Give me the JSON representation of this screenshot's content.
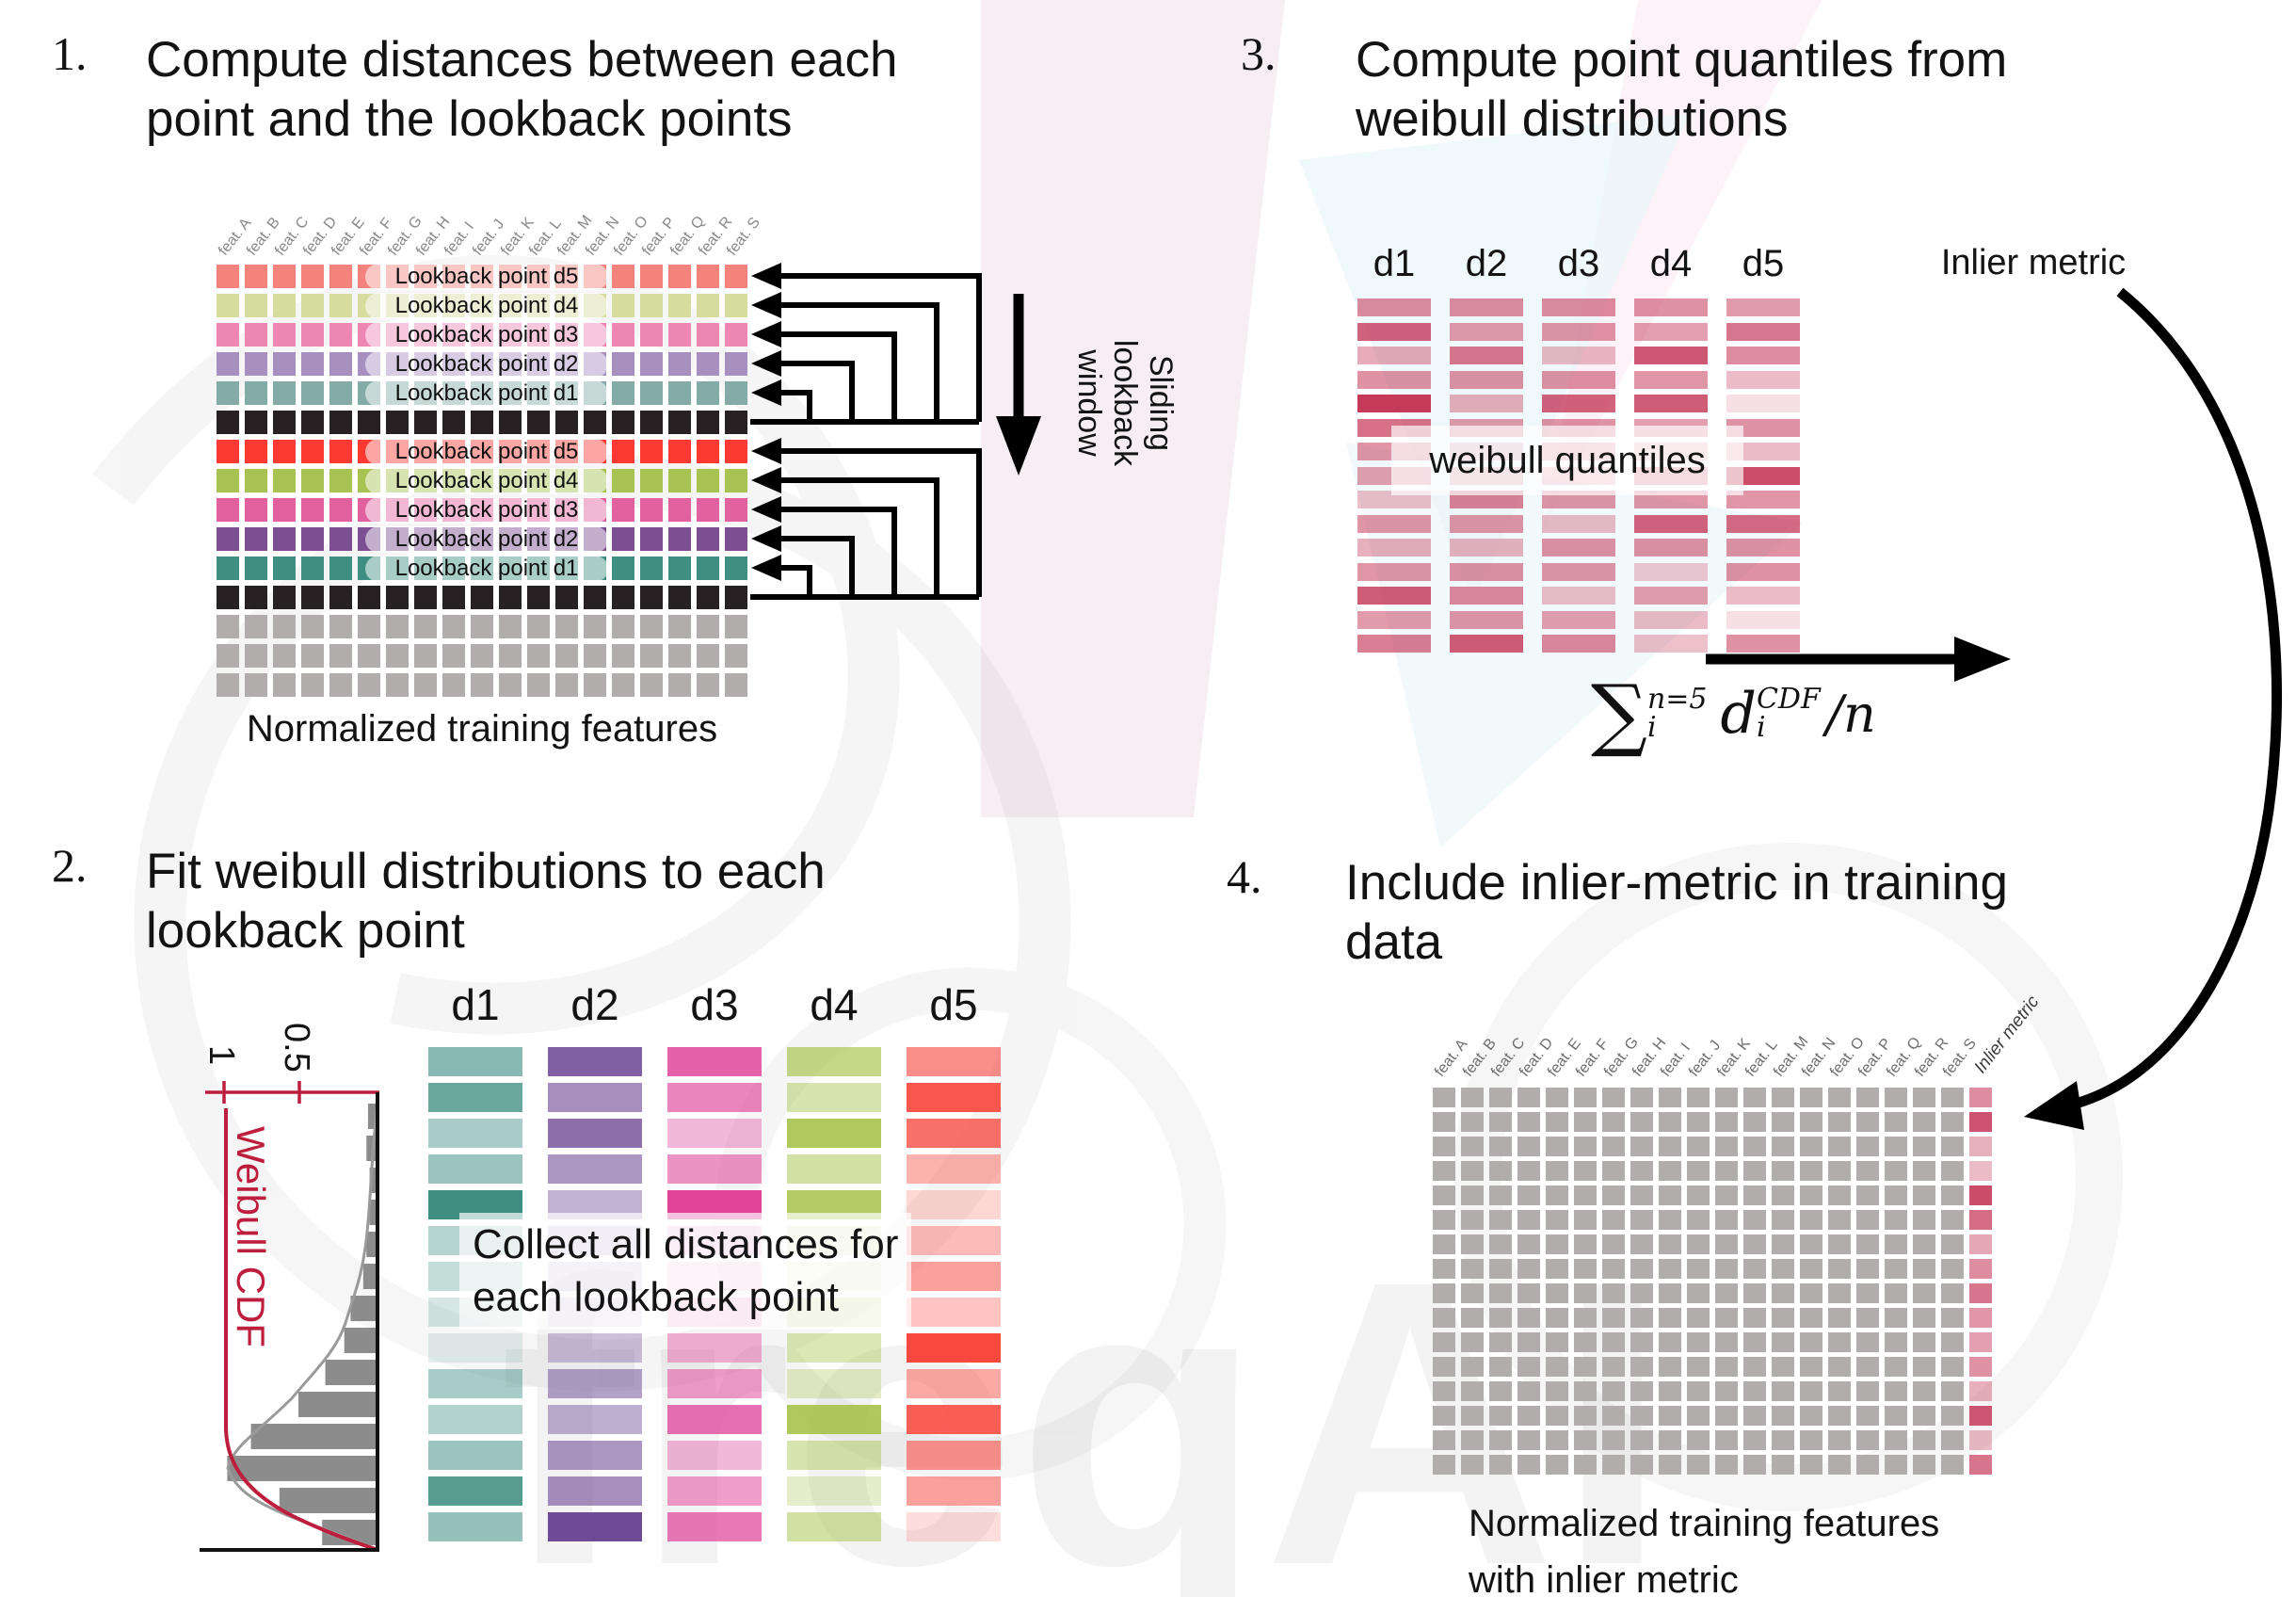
{
  "watermark": {
    "text": "freqAI"
  },
  "features": [
    "feat. A",
    "feat. B",
    "feat. C",
    "feat. D",
    "feat. E",
    "feat. F",
    "feat. G",
    "feat. H",
    "feat. I",
    "feat. J",
    "feat. K",
    "feat. L",
    "feat. M",
    "feat. N",
    "feat. O",
    "feat. P",
    "feat. Q",
    "feat. R",
    "feat. S"
  ],
  "lookback_labels": [
    "Lookback point d5",
    "Lookback point d4",
    "Lookback point d3",
    "Lookback point d2",
    "Lookback point d1"
  ],
  "step1": {
    "number": "1.",
    "title1": "Compute distances between each",
    "title2": "point and the lookback points",
    "caption": "Normalized training features",
    "sliding": [
      "Sliding",
      "lookback",
      "window"
    ],
    "grid": {
      "n_cols": 19,
      "row_sequence": [
        "s1-0",
        "s1-1",
        "s1-2",
        "s1-3",
        "s1-4",
        "black",
        "s2-0",
        "s2-1",
        "s2-2",
        "s2-3",
        "s2-4",
        "black",
        "gray",
        "gray",
        "gray"
      ],
      "set1_colors": [
        "#f4837d",
        "#d5dc9e",
        "#ee86b4",
        "#a78fc0",
        "#84aca7"
      ],
      "set2_colors": [
        "#fb3a33",
        "#a9c254",
        "#e1609e",
        "#7b4f91",
        "#3f8e82"
      ],
      "black": "#272123",
      "gray": "#b2adad"
    }
  },
  "step2": {
    "number": "2.",
    "title1": "Fit weibull distributions to each",
    "title2": "lookback point",
    "overlay1": "Collect all distances for",
    "overlay2": "each lookback point",
    "hist": {
      "ylabel": "Weibull CDF",
      "tick_high": "1",
      "tick_mid": "0.5",
      "bar_color": "#8c8c8c",
      "cdf_color": "#be1e3e",
      "bars": [
        0.06,
        0.07,
        0.05,
        0.05,
        0.07,
        0.09,
        0.17,
        0.21,
        0.33,
        0.5,
        0.8,
        0.95,
        0.62,
        0.35
      ]
    },
    "columns": [
      {
        "name": "d1",
        "color": "#3f8e82",
        "opacities": [
          0.62,
          0.78,
          0.45,
          0.52,
          1.0,
          0.38,
          0.3,
          0.22,
          0.14,
          0.45,
          0.4,
          0.52,
          0.88,
          0.55
        ]
      },
      {
        "name": "d2",
        "color": "#6f4b96",
        "opacities": [
          0.88,
          0.62,
          0.8,
          0.58,
          0.42,
          0.3,
          0.22,
          0.18,
          0.35,
          0.52,
          0.45,
          0.58,
          0.62,
          1.0
        ]
      },
      {
        "name": "d3",
        "color": "#e0459a",
        "opacities": [
          0.85,
          0.65,
          0.38,
          0.58,
          1.0,
          0.28,
          0.2,
          0.3,
          0.42,
          0.52,
          0.78,
          0.38,
          0.52,
          0.72
        ]
      },
      {
        "name": "d4",
        "color": "#a2bf3f",
        "opacities": [
          0.62,
          0.42,
          0.85,
          0.48,
          0.8,
          0.22,
          0.15,
          0.32,
          0.38,
          0.3,
          0.85,
          0.42,
          0.28,
          0.48
        ]
      },
      {
        "name": "d5",
        "color": "#f9493f",
        "opacities": [
          0.62,
          0.92,
          0.78,
          0.42,
          0.22,
          0.38,
          0.52,
          0.32,
          1.0,
          0.48,
          0.88,
          0.58,
          0.52,
          0.18
        ]
      }
    ]
  },
  "step3": {
    "number": "3.",
    "title1": "Compute point quantiles from",
    "title2": "weibull distributions",
    "overlay": "weibull quantiles",
    "inlier_header": "Inlier metric",
    "quantile_color": "#c22e50",
    "formula": {
      "sum": "∑",
      "sup": "n=5",
      "sub": "i",
      "d": "d",
      "dsup": "CDF",
      "dsub": "i",
      "divisor": "/n"
    },
    "columns": [
      {
        "name": "d1",
        "opacities": [
          0.55,
          0.75,
          0.4,
          0.52,
          0.95,
          0.68,
          0.5,
          0.45,
          0.3,
          0.5,
          0.38,
          0.5,
          0.78,
          0.48,
          0.62
        ]
      },
      {
        "name": "d2",
        "opacities": [
          0.55,
          0.48,
          0.65,
          0.52,
          0.38,
          0.48,
          0.32,
          0.36,
          0.6,
          0.5,
          0.36,
          0.52,
          0.56,
          0.5,
          0.78
        ]
      },
      {
        "name": "d3",
        "opacities": [
          0.55,
          0.5,
          0.32,
          0.52,
          0.75,
          0.52,
          0.38,
          0.32,
          0.5,
          0.32,
          0.52,
          0.5,
          0.3,
          0.46,
          0.56
        ]
      },
      {
        "name": "d4",
        "opacities": [
          0.52,
          0.46,
          0.8,
          0.5,
          0.78,
          0.46,
          0.3,
          0.52,
          0.5,
          0.75,
          0.52,
          0.26,
          0.46,
          0.32,
          0.3
        ]
      },
      {
        "name": "d5",
        "opacities": [
          0.48,
          0.65,
          0.55,
          0.32,
          0.15,
          0.52,
          0.32,
          0.85,
          0.5,
          0.7,
          0.52,
          0.52,
          0.32,
          0.15,
          0.52
        ]
      }
    ],
    "inlier_opacities": [
      0.55,
      0.75,
      0.42,
      0.36,
      0.82,
      0.66,
      0.4,
      0.52,
      0.62,
      0.46,
      0.42,
      0.52,
      0.76,
      0.42,
      0.62
    ]
  },
  "step4": {
    "number": "4.",
    "title1": "Include inlier-metric in training",
    "title2": "data",
    "caption1": "Normalized training features",
    "caption2": "with inlier metric",
    "inlier_header": "Inlier metric",
    "gray_color": "#b2adad",
    "inlier_color": "#c22e50",
    "n_rows": 16,
    "inlier_opacities": [
      0.55,
      0.82,
      0.38,
      0.32,
      0.86,
      0.7,
      0.42,
      0.55,
      0.66,
      0.5,
      0.46,
      0.52,
      0.38,
      0.8,
      0.32,
      0.66
    ]
  }
}
